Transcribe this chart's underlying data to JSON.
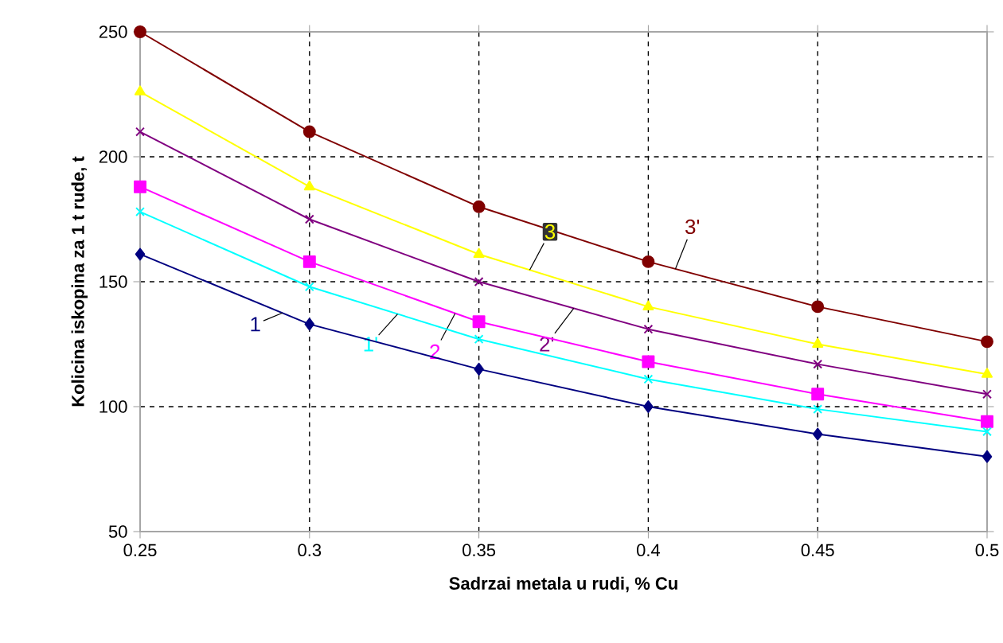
{
  "chart_data": {
    "type": "line",
    "xlabel": "Sadrzai metala u rudi, % Cu",
    "ylabel": "Kolicina iskopina za 1 t rude, t",
    "x": [
      0.25,
      0.3,
      0.35,
      0.4,
      0.45,
      0.5
    ],
    "series": [
      {
        "name": "3'",
        "color": "#800000",
        "marker": "circle",
        "values": [
          250,
          210,
          180,
          158,
          140,
          126
        ]
      },
      {
        "name": "3",
        "color": "#ffff00",
        "marker": "triangle",
        "values": [
          226,
          188,
          161,
          140,
          125,
          113
        ]
      },
      {
        "name": "2'",
        "color": "#800080",
        "marker": "cross",
        "values": [
          210,
          175,
          150,
          131,
          117,
          105
        ]
      },
      {
        "name": "2",
        "color": "#ff00ff",
        "marker": "square",
        "values": [
          188,
          158,
          134,
          118,
          105,
          94
        ]
      },
      {
        "name": "1'",
        "color": "#00ffff",
        "marker": "cross",
        "values": [
          178,
          148,
          127,
          111,
          99,
          90
        ]
      },
      {
        "name": "1",
        "color": "#000080",
        "marker": "diamond",
        "values": [
          161,
          133,
          115,
          100,
          89,
          80
        ]
      }
    ],
    "xlim": [
      0.25,
      0.5
    ],
    "xticks": [
      0.25,
      0.3,
      0.35,
      0.4,
      0.45,
      0.5
    ],
    "ylim": [
      50,
      250
    ],
    "yticks": [
      50,
      100,
      150,
      200,
      250
    ],
    "grid": true,
    "line_style": "solid"
  }
}
